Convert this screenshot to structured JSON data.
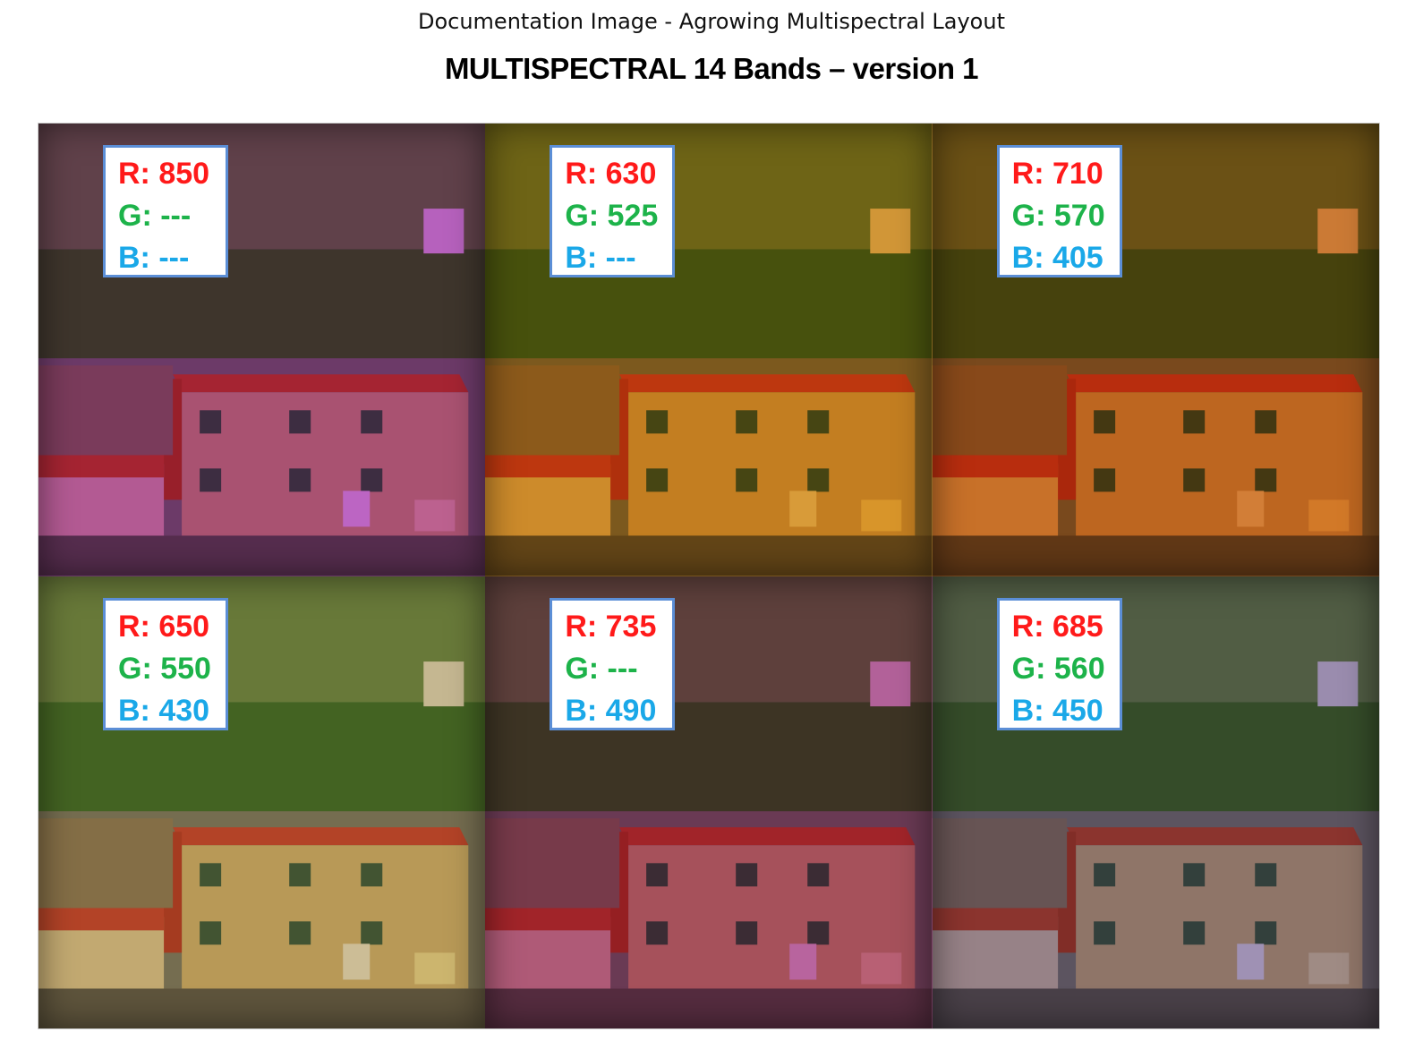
{
  "document": {
    "caption": "Documentation Image - Agrowing Multispectral Layout",
    "title": "MULTISPECTRAL 14 Bands – version 1"
  },
  "panels": [
    {
      "r": "R: 850",
      "g": "G: ---",
      "b": "B: ---",
      "tint": "#c86bd0"
    },
    {
      "r": "R: 630",
      "g": "G: 525",
      "b": "B: ---",
      "tint": "#e6a53c"
    },
    {
      "r": "R: 710",
      "g": "G: 570",
      "b": "B: 405",
      "tint": "#e0863a"
    },
    {
      "r": "R: 650",
      "g": "G: 550",
      "b": "B: 430",
      "tint": "#d9c9a0"
    },
    {
      "r": "R: 735",
      "g": "G: ---",
      "b": "B: 490",
      "tint": "#c46aa8"
    },
    {
      "r": "R: 685",
      "g": "G: 560",
      "b": "B: 450",
      "tint": "#a99ac0"
    }
  ],
  "colors": {
    "red_label": "#ff1a1a",
    "green_label": "#1db34a",
    "blue_label": "#1aa8e8",
    "box_border": "#5b8ed6"
  }
}
